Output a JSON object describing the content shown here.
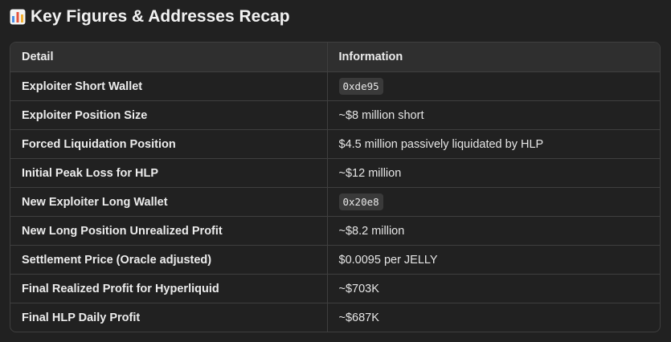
{
  "heading": {
    "icon": "bar-chart-icon",
    "text": "Key Figures & Addresses Recap"
  },
  "table": {
    "headers": [
      "Detail",
      "Information"
    ],
    "rows": [
      {
        "detail": "Exploiter Short Wallet",
        "info": "0xde95",
        "code": true
      },
      {
        "detail": "Exploiter Position Size",
        "info": "~$8 million short",
        "code": false
      },
      {
        "detail": "Forced Liquidation Position",
        "info": "$4.5 million passively liquidated by HLP",
        "code": false
      },
      {
        "detail": "Initial Peak Loss for HLP",
        "info": "~$12 million",
        "code": false
      },
      {
        "detail": "New Exploiter Long Wallet",
        "info": "0x20e8",
        "code": true
      },
      {
        "detail": "New Long Position Unrealized Profit",
        "info": "~$8.2 million",
        "code": false
      },
      {
        "detail": "Settlement Price (Oracle adjusted)",
        "info": "$0.0095 per JELLY",
        "code": false
      },
      {
        "detail": "Final Realized Profit for Hyperliquid",
        "info": "~$703K",
        "code": false
      },
      {
        "detail": "Final HLP Daily Profit",
        "info": "~$687K",
        "code": false
      }
    ]
  },
  "colors": {
    "background": "#212121",
    "header_row": "#2f2f2f",
    "border": "#3f3f3f",
    "code_bg": "#3a3a3a",
    "icon_bars": [
      "#4a8fe7",
      "#e5533d",
      "#f2b134"
    ]
  }
}
